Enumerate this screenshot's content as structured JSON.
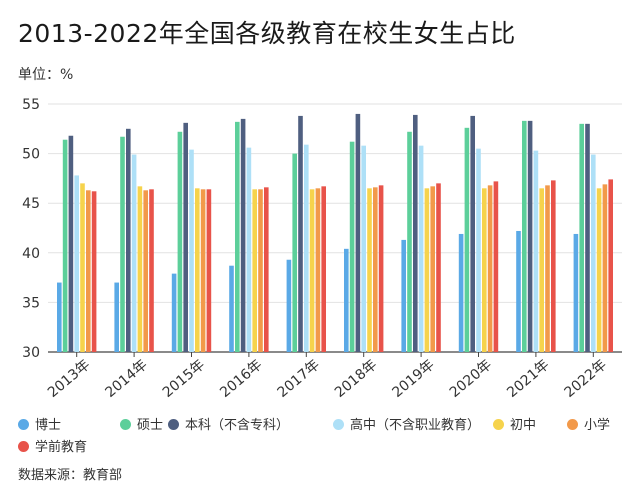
{
  "title": "2013-2022年全国各级教育在校生女生占比",
  "unit": "单位：%",
  "source": "数据来源：教育部",
  "chart_data": {
    "type": "bar",
    "title": "2013-2022年全国各级教育在校生女生占比",
    "xlabel": "",
    "ylabel": "",
    "ylim": [
      30,
      55
    ],
    "yticks": [
      30,
      35,
      40,
      45,
      50,
      55
    ],
    "grid": true,
    "legend_position": "bottom",
    "categories": [
      "2013年",
      "2014年",
      "2015年",
      "2016年",
      "2017年",
      "2018年",
      "2019年",
      "2020年",
      "2021年",
      "2022年"
    ],
    "series": [
      {
        "name": "博士",
        "color": "#5aa9e6",
        "values": [
          37.0,
          37.0,
          37.9,
          38.7,
          39.3,
          40.4,
          41.3,
          41.9,
          42.2,
          41.9
        ]
      },
      {
        "name": "硕士",
        "color": "#5ccf9a",
        "values": [
          51.4,
          51.7,
          52.2,
          53.2,
          50.0,
          51.2,
          52.2,
          52.6,
          53.3,
          53.0
        ]
      },
      {
        "name": "本科（不含专科）",
        "color": "#4f5f80",
        "values": [
          51.8,
          52.5,
          53.1,
          53.5,
          53.8,
          54.0,
          53.9,
          53.8,
          53.3,
          53.0
        ]
      },
      {
        "name": "高中（不含职业教育）",
        "color": "#aee0f7",
        "values": [
          47.8,
          49.9,
          50.4,
          50.6,
          50.9,
          50.8,
          50.8,
          50.5,
          50.3,
          49.9
        ]
      },
      {
        "name": "初中",
        "color": "#f6d34c",
        "values": [
          47.0,
          46.7,
          46.5,
          46.4,
          46.4,
          46.5,
          46.5,
          46.5,
          46.5,
          46.5
        ]
      },
      {
        "name": "小学",
        "color": "#f2994a",
        "values": [
          46.3,
          46.3,
          46.4,
          46.4,
          46.5,
          46.6,
          46.7,
          46.8,
          46.8,
          46.9
        ]
      },
      {
        "name": "学前教育",
        "color": "#e8534a",
        "values": [
          46.2,
          46.4,
          46.4,
          46.6,
          46.7,
          46.8,
          47.0,
          47.2,
          47.3,
          47.4
        ]
      }
    ]
  }
}
